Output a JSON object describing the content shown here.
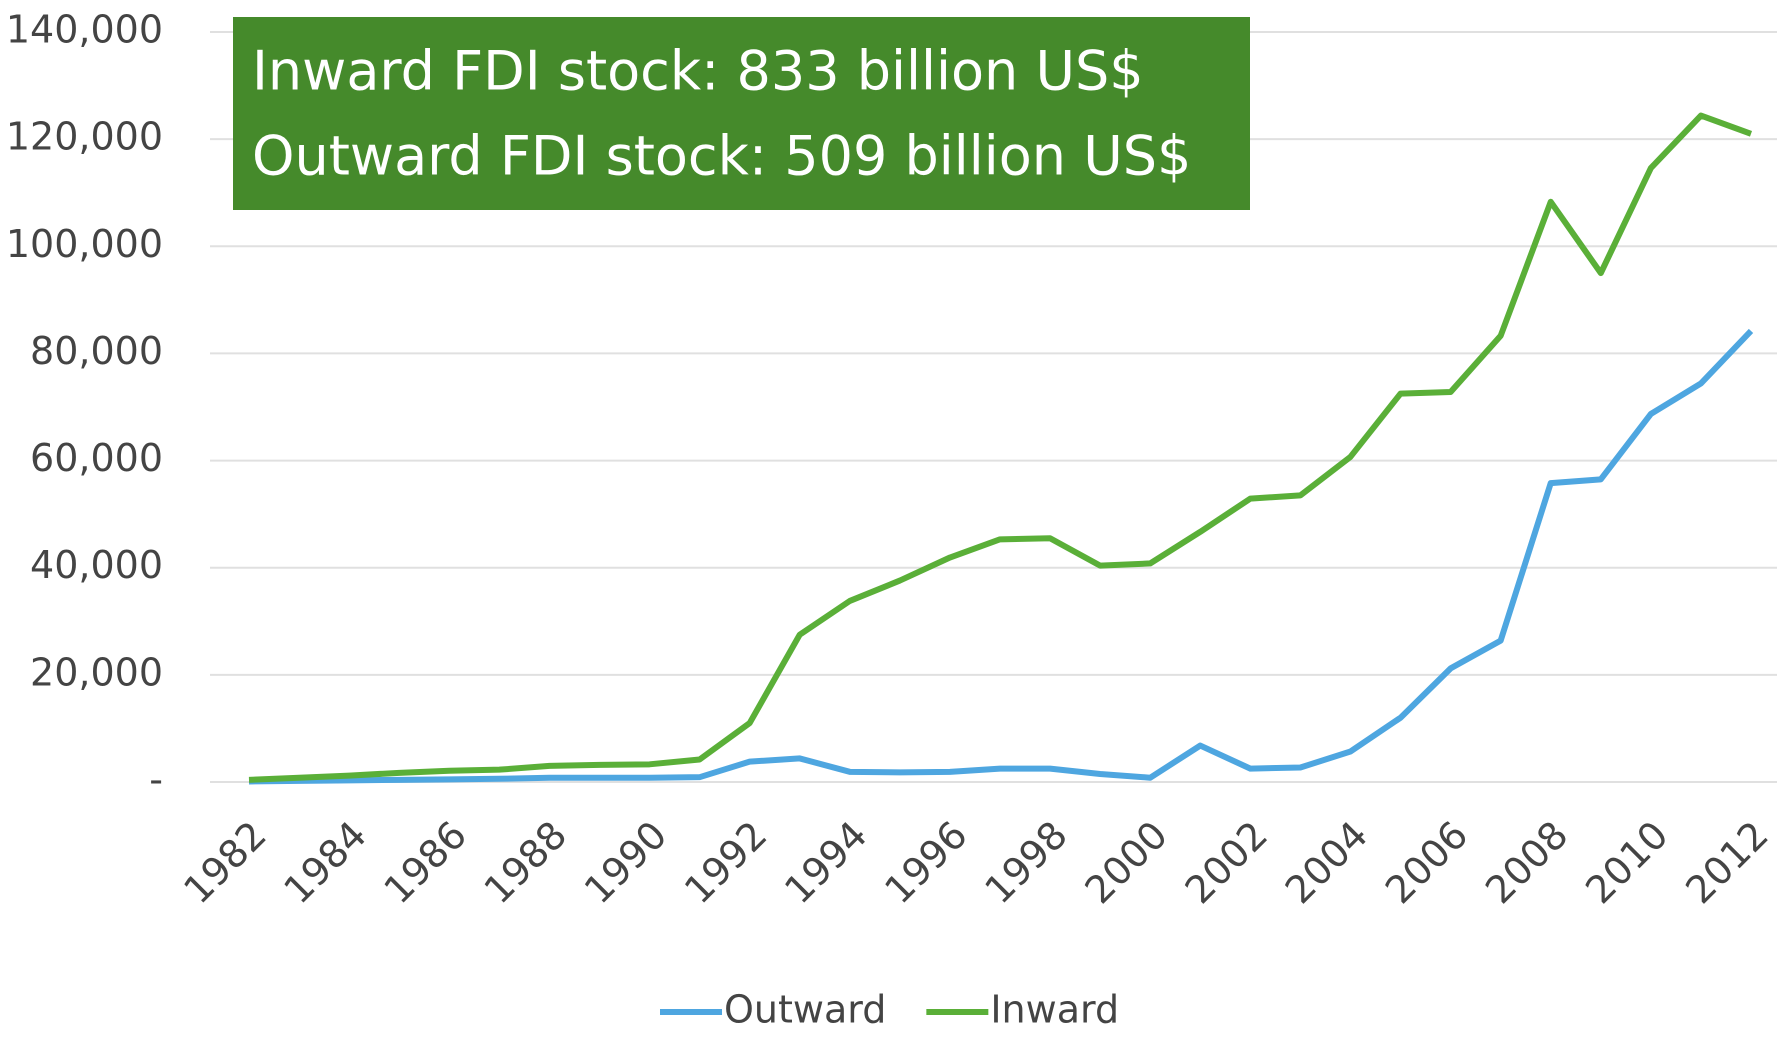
{
  "chart_data": {
    "type": "line",
    "annotations": [
      "Inward FDI stock: 833 billion US$",
      "Outward FDI stock: 509 billion US$"
    ],
    "x": [
      1982,
      1983,
      1984,
      1985,
      1986,
      1987,
      1988,
      1989,
      1990,
      1991,
      1992,
      1993,
      1994,
      1995,
      1996,
      1997,
      1998,
      1999,
      2000,
      2001,
      2002,
      2003,
      2004,
      2005,
      2006,
      2007,
      2008,
      2009,
      2010,
      2011,
      2012
    ],
    "series": [
      {
        "name": "Outward",
        "color": "#4ea6e0",
        "values": [
          100,
          200,
          300,
          400,
          500,
          600,
          800,
          800,
          800,
          900,
          3800,
          4400,
          1900,
          1800,
          1900,
          2500,
          2500,
          1500,
          800,
          6800,
          2500,
          2700,
          5700,
          12000,
          21200,
          26400,
          55800,
          56500,
          68700,
          74400,
          84200
        ]
      },
      {
        "name": "Inward",
        "color": "#5aaf38",
        "values": [
          400,
          800,
          1200,
          1700,
          2100,
          2300,
          3000,
          3200,
          3300,
          4200,
          11000,
          27500,
          33800,
          37600,
          41900,
          45300,
          45500,
          40400,
          40800,
          46700,
          52900,
          53500,
          60700,
          72500,
          72800,
          83300,
          108300,
          95000,
          114600,
          124400,
          121000
        ]
      }
    ],
    "xlim": [
      1982,
      2012
    ],
    "xticks": [
      1982,
      1984,
      1986,
      1988,
      1990,
      1992,
      1994,
      1996,
      1998,
      2000,
      2002,
      2004,
      2006,
      2008,
      2010,
      2012
    ],
    "ylim": [
      0,
      140000
    ],
    "yticks": [
      {
        "value": 0,
        "label": "-"
      },
      {
        "value": 20000,
        "label": "20,000"
      },
      {
        "value": 40000,
        "label": "40,000"
      },
      {
        "value": 60000,
        "label": "60,000"
      },
      {
        "value": 80000,
        "label": "80,000"
      },
      {
        "value": 100000,
        "label": "100,000"
      },
      {
        "value": 120000,
        "label": "120,000"
      },
      {
        "value": 140000,
        "label": "140,000"
      }
    ],
    "grid": true,
    "legend": "bottom",
    "annotation_color": "#458a2b"
  }
}
